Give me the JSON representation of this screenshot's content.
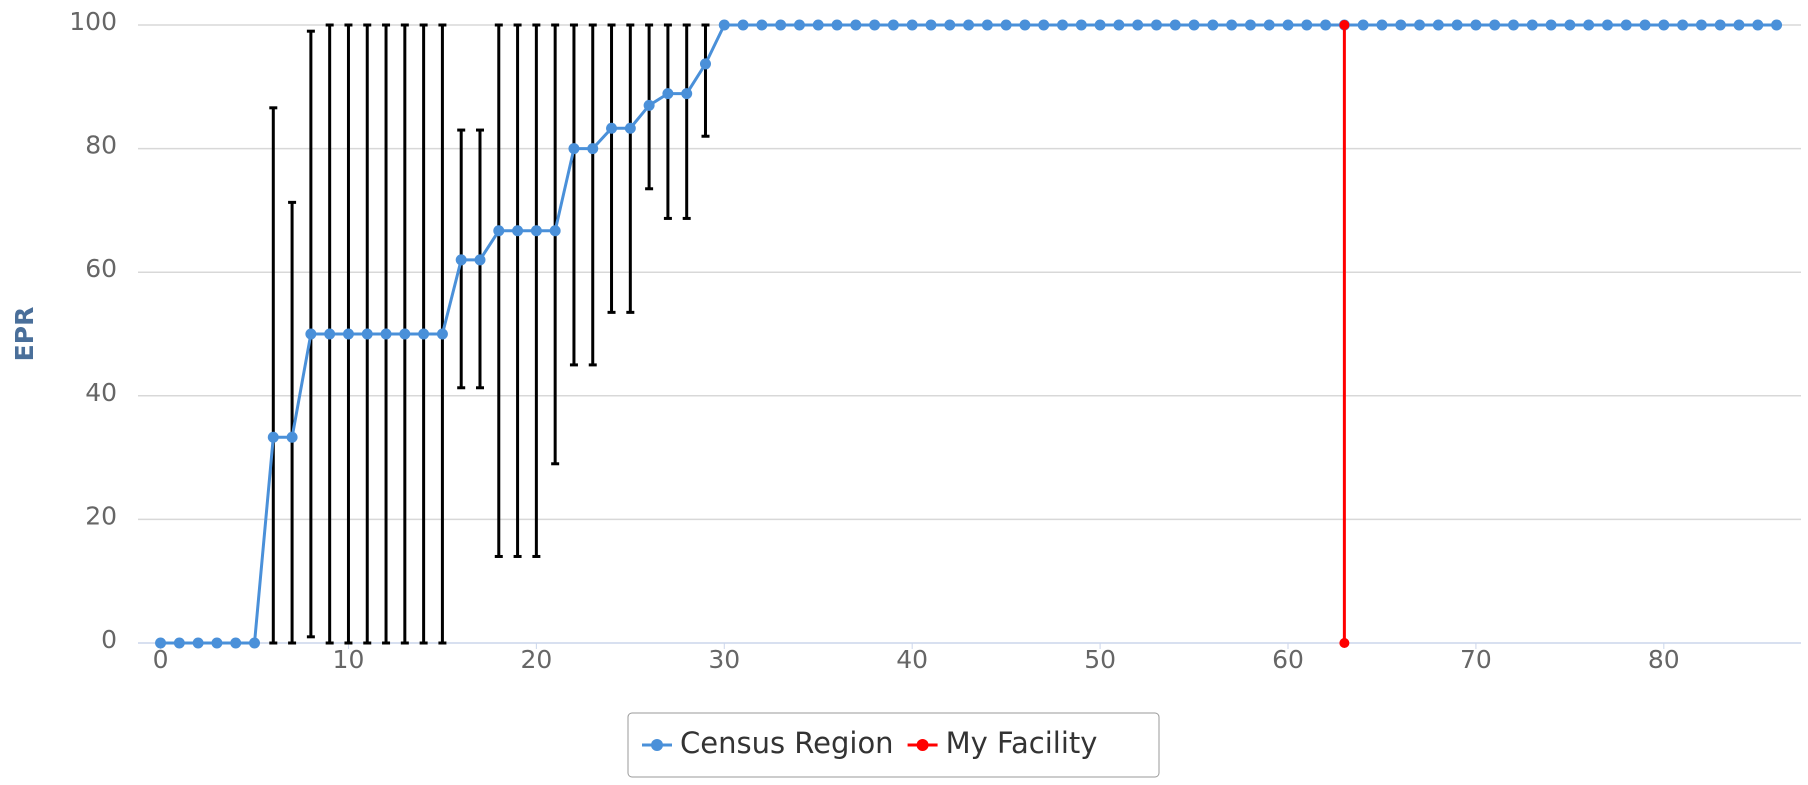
{
  "chart_data": {
    "type": "line",
    "y_label": "EPR",
    "x": [
      0,
      1,
      2,
      3,
      4,
      5,
      6,
      7,
      8,
      9,
      10,
      11,
      12,
      13,
      14,
      15,
      16,
      17,
      18,
      19,
      20,
      21,
      22,
      23,
      24,
      25,
      26,
      27,
      28,
      29,
      30,
      31,
      32,
      33,
      34,
      35,
      36,
      37,
      38,
      39,
      40,
      41,
      42,
      43,
      44,
      45,
      46,
      47,
      48,
      49,
      50,
      51,
      52,
      53,
      54,
      55,
      56,
      57,
      58,
      59,
      60,
      61,
      62,
      63,
      64,
      65,
      66,
      67,
      68,
      69,
      70,
      71,
      72,
      73,
      74,
      75,
      76,
      77,
      78,
      79,
      80,
      81,
      82,
      83,
      84,
      85,
      86
    ],
    "series": [
      {
        "name": "Census Region",
        "color": "#4a90d9",
        "values": [
          0,
          0,
          0,
          0,
          0,
          0,
          33.3,
          33.3,
          50,
          50,
          50,
          50,
          50,
          50,
          50,
          50,
          62,
          62,
          66.7,
          66.7,
          66.7,
          66.7,
          80,
          80,
          83.3,
          83.3,
          87,
          88.9,
          88.9,
          93.7,
          100,
          100,
          100,
          100,
          100,
          100,
          100,
          100,
          100,
          100,
          100,
          100,
          100,
          100,
          100,
          100,
          100,
          100,
          100,
          100,
          100,
          100,
          100,
          100,
          100,
          100,
          100,
          100,
          100,
          100,
          100,
          100,
          100,
          100,
          100,
          100,
          100,
          100,
          100,
          100,
          100,
          100,
          100,
          100,
          100,
          100,
          100,
          100,
          100,
          100,
          100,
          100,
          100,
          100,
          100,
          100,
          100
        ],
        "error_low": [
          null,
          null,
          null,
          null,
          null,
          null,
          0,
          0,
          1,
          0,
          0,
          0,
          0,
          0,
          0,
          0,
          41.3,
          41.3,
          14,
          14,
          14,
          29,
          45,
          45,
          53.5,
          53.5,
          73.5,
          68.7,
          68.7,
          82,
          null,
          null,
          null,
          null,
          null,
          null,
          null,
          null,
          null,
          null,
          null,
          null,
          null,
          null,
          null,
          null,
          null,
          null,
          null,
          null,
          null,
          null,
          null,
          null,
          null,
          null,
          null,
          null,
          null,
          null,
          null,
          null,
          null,
          null,
          null,
          null,
          null,
          null,
          null,
          null,
          null,
          null,
          null,
          null,
          null,
          null,
          null,
          null,
          null,
          null,
          null,
          null,
          null,
          null,
          null,
          null,
          null
        ],
        "error_high": [
          null,
          null,
          null,
          null,
          null,
          null,
          86.6,
          71.3,
          99,
          100,
          100,
          100,
          100,
          100,
          100,
          100,
          83,
          83,
          100,
          100,
          100,
          100,
          100,
          100,
          100,
          100,
          100,
          100,
          100,
          100,
          null,
          null,
          null,
          null,
          null,
          null,
          null,
          null,
          null,
          null,
          null,
          null,
          null,
          null,
          null,
          null,
          null,
          null,
          null,
          null,
          null,
          null,
          null,
          null,
          null,
          null,
          null,
          null,
          null,
          null,
          null,
          null,
          null,
          null,
          null,
          null,
          null,
          null,
          null,
          null,
          null,
          null,
          null,
          null,
          null,
          null,
          null,
          null,
          null,
          null,
          null,
          null,
          null,
          null,
          null,
          null,
          null
        ]
      },
      {
        "name": "My Facility",
        "color": "#ff0000",
        "x": [
          63,
          63
        ],
        "values": [
          0,
          100
        ]
      }
    ],
    "xlim": [
      -1.2,
      87.3
    ],
    "xticks": [
      0,
      10,
      20,
      30,
      40,
      50,
      60,
      70,
      80
    ],
    "ylim": [
      0,
      100
    ],
    "yticks": [
      0,
      20,
      40,
      60,
      80,
      100
    ],
    "grid": true,
    "legend": "bottom"
  }
}
